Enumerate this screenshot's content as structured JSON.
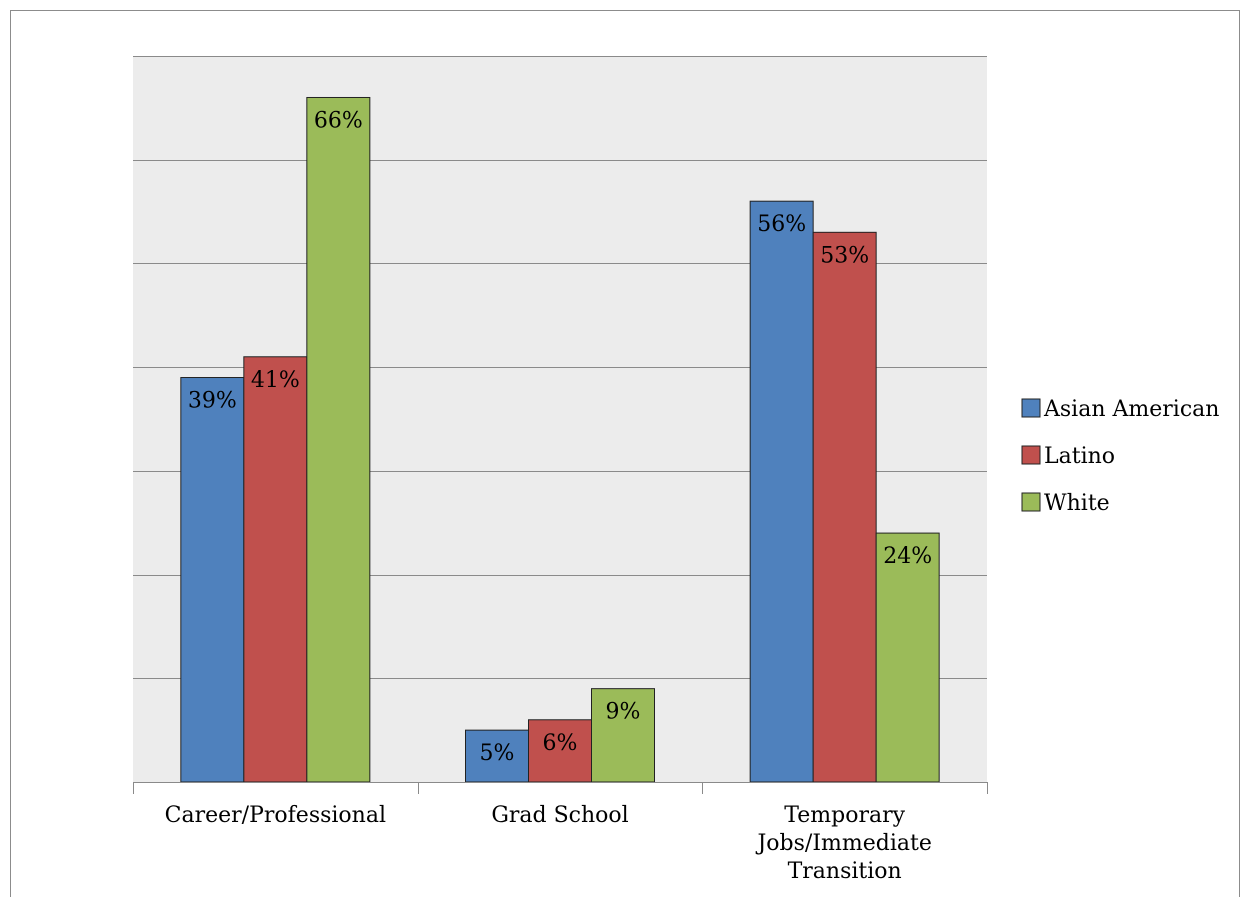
{
  "chart_data": {
    "type": "bar",
    "title": "",
    "xlabel": "",
    "ylabel": "",
    "ylim": [
      0,
      70
    ],
    "grid": true,
    "legend_position": "right",
    "categories": [
      [
        "Career/Professional"
      ],
      [
        "Grad School"
      ],
      [
        "Temporary",
        "Jobs/Immediate",
        "Transition"
      ]
    ],
    "series": [
      {
        "name": "Asian American",
        "color": "#4f81bd",
        "values": [
          39,
          5,
          56
        ],
        "labels": [
          "39%",
          "5%",
          "56%"
        ]
      },
      {
        "name": "Latino",
        "color": "#c0504d",
        "values": [
          41,
          6,
          53
        ],
        "labels": [
          "41%",
          "6%",
          "53%"
        ]
      },
      {
        "name": "White",
        "color": "#9bbb59",
        "values": [
          66,
          9,
          24
        ],
        "labels": [
          "66%",
          "9%",
          "24%"
        ]
      }
    ]
  }
}
